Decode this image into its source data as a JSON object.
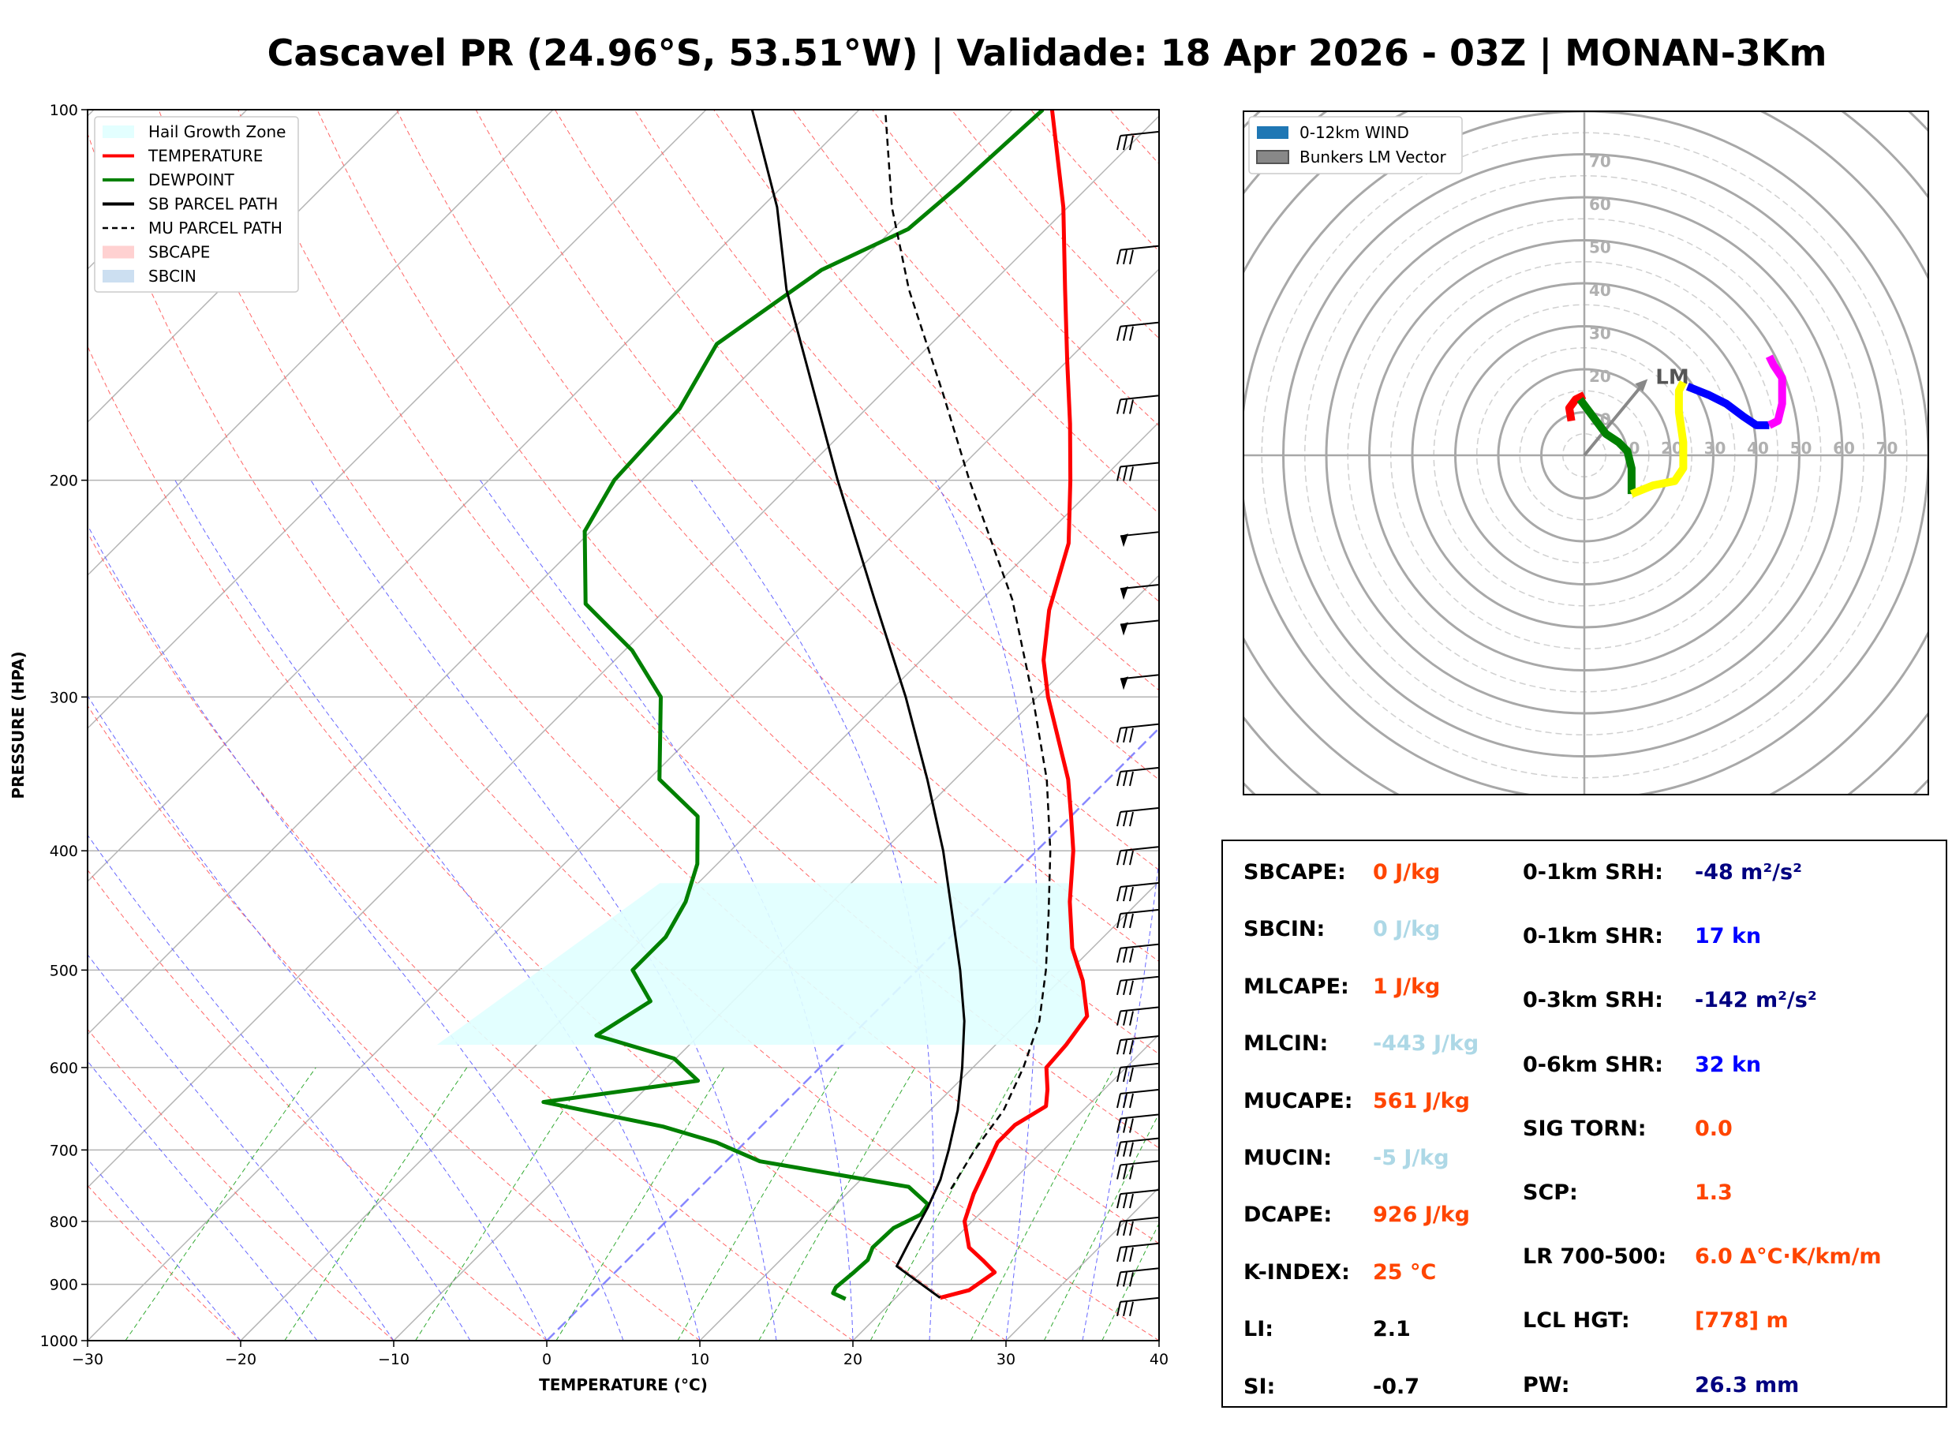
{
  "title": "Cascavel PR (24.96°S, 53.51°W) | Validade: 18 Apr 2026 - 03Z | MONAN-3Km",
  "colors": {
    "temperature": "#ff0000",
    "dewpoint": "#008000",
    "sb_parcel": "#000000",
    "hail_zone": "#e0ffff",
    "label_orange": "#ff4500",
    "label_lightblue": "#add8e6",
    "label_navy": "#000080",
    "label_blue": "#0000ff",
    "label_black": "#000000"
  },
  "chart_data": [
    {
      "type": "line",
      "subtype": "skew-t",
      "xlabel": "TEMPERATURE (°C)",
      "ylabel": "PRESSURE (HPA)",
      "xlim": [
        -30,
        40
      ],
      "ylim": [
        1000,
        100
      ],
      "x_ticks": [
        -30,
        -20,
        -10,
        0,
        10,
        20,
        30,
        40
      ],
      "x_tick_labels": [
        "−30",
        "−20",
        "−10",
        "0",
        "10",
        "20",
        "30",
        "40"
      ],
      "y_ticks": [
        100,
        200,
        300,
        400,
        500,
        600,
        700,
        800,
        900,
        1000
      ],
      "y_tick_labels": [
        "100",
        "200",
        "300",
        "400",
        "500",
        "600",
        "700",
        "800",
        "900",
        "1000"
      ],
      "legend": [
        {
          "label": "Hail Growth Zone",
          "style": "fill",
          "color": "#e0ffff"
        },
        {
          "label": "TEMPERATURE",
          "style": "solid",
          "color": "#ff0000"
        },
        {
          "label": "DEWPOINT",
          "style": "solid",
          "color": "#008000"
        },
        {
          "label": "SB PARCEL PATH",
          "style": "solid",
          "color": "#000000"
        },
        {
          "label": "MU PARCEL PATH",
          "style": "dashed",
          "color": "#000000"
        },
        {
          "label": "SBCAPE",
          "style": "fill",
          "color": "#ffcccc"
        },
        {
          "label": "SBCIN",
          "style": "fill",
          "color": "#c6dbef"
        }
      ],
      "series": [
        {
          "name": "TEMPERATURE",
          "points": [
            [
              923,
              22.9
            ],
            [
              910,
              24.3
            ],
            [
              880,
              24.8
            ],
            [
              860,
              23.2
            ],
            [
              840,
              21.5
            ],
            [
              800,
              19.5
            ],
            [
              760,
              18.3
            ],
            [
              720,
              17.3
            ],
            [
              690,
              16.5
            ],
            [
              668,
              16.5
            ],
            [
              645,
              17.3
            ],
            [
              625,
              16.3
            ],
            [
              600,
              14.8
            ],
            [
              575,
              14.6
            ],
            [
              545,
              14.1
            ],
            [
              510,
              11.5
            ],
            [
              480,
              8.7
            ],
            [
              440,
              5.5
            ],
            [
              400,
              2.4
            ],
            [
              375,
              0.0
            ],
            [
              350,
              -2.6
            ],
            [
              300,
              -9.3
            ],
            [
              280,
              -12.0
            ],
            [
              255,
              -14.9
            ],
            [
              225,
              -18.0
            ],
            [
              200,
              -22.0
            ],
            [
              180,
              -25.7
            ],
            [
              160,
              -30.0
            ],
            [
              140,
              -34.8
            ],
            [
              120,
              -40.3
            ],
            [
              100,
              -47.4
            ]
          ]
        },
        {
          "name": "DEWPOINT",
          "points": [
            [
              925,
              16.8
            ],
            [
              915,
              15.6
            ],
            [
              905,
              15.4
            ],
            [
              880,
              15.6
            ],
            [
              860,
              15.7
            ],
            [
              840,
              15.2
            ],
            [
              810,
              15.3
            ],
            [
              790,
              16.2
            ],
            [
              775,
              16.0
            ],
            [
              750,
              13.6
            ],
            [
              715,
              2.2
            ],
            [
              690,
              -1.9
            ],
            [
              670,
              -6.4
            ],
            [
              640,
              -15.8
            ],
            [
              615,
              -7.1
            ],
            [
              590,
              -10.1
            ],
            [
              565,
              -16.7
            ],
            [
              530,
              -15.4
            ],
            [
              500,
              -18.6
            ],
            [
              470,
              -18.6
            ],
            [
              440,
              -19.6
            ],
            [
              410,
              -21.3
            ],
            [
              375,
              -24.4
            ],
            [
              350,
              -29.3
            ],
            [
              300,
              -34.6
            ],
            [
              275,
              -39.5
            ],
            [
              252,
              -45.6
            ],
            [
              220,
              -50.4
            ],
            [
              200,
              -51.8
            ],
            [
              175,
              -52.2
            ],
            [
              155,
              -54.0
            ],
            [
              135,
              -52.0
            ],
            [
              125,
              -49.0
            ],
            [
              115,
              -48.5
            ],
            [
              100,
              -48.0
            ]
          ]
        },
        {
          "name": "SB PARCEL PATH",
          "points": [
            [
              923,
              22.9
            ],
            [
              870,
              18.0
            ],
            [
              830,
              17.2
            ],
            [
              780,
              16.2
            ],
            [
              740,
              15.2
            ],
            [
              700,
              13.8
            ],
            [
              650,
              11.8
            ],
            [
              600,
              9.3
            ],
            [
              550,
              6.4
            ],
            [
              500,
              2.8
            ],
            [
              450,
              -1.4
            ],
            [
              400,
              -6.1
            ],
            [
              350,
              -11.8
            ],
            [
              300,
              -18.6
            ],
            [
              250,
              -27.0
            ],
            [
              200,
              -37.2
            ],
            [
              170,
              -44.4
            ],
            [
              140,
              -53.0
            ],
            [
              120,
              -59.0
            ],
            [
              100,
              -67.0
            ]
          ]
        },
        {
          "name": "MU PARCEL PATH",
          "points": [
            [
              753,
              16.5
            ],
            [
              700,
              15.5
            ],
            [
              650,
              14.8
            ],
            [
              600,
              13.3
            ],
            [
              550,
              11.3
            ],
            [
              500,
              8.4
            ],
            [
              450,
              4.9
            ],
            [
              400,
              0.9
            ],
            [
              350,
              -4.0
            ],
            [
              300,
              -10.3
            ],
            [
              250,
              -18.0
            ],
            [
              200,
              -28.6
            ],
            [
              170,
              -36.0
            ],
            [
              140,
              -45.0
            ],
            [
              120,
              -51.5
            ],
            [
              100,
              -58.3
            ]
          ]
        }
      ],
      "hail_growth_zone": {
        "p_bottom": 575,
        "p_top": 425
      }
    },
    {
      "type": "scatter",
      "subtype": "hodograph",
      "title": "",
      "rings": [
        10,
        20,
        30,
        40,
        50,
        60,
        70
      ],
      "ring_labels": [
        "10",
        "20",
        "30",
        "40",
        "50",
        "60",
        "70"
      ],
      "axis_range": [
        -80,
        80
      ],
      "legend": [
        {
          "label": "0-12km WIND",
          "color": "#1f77b4"
        },
        {
          "label": "Bunkers LM Vector",
          "color": "#888888"
        }
      ],
      "bunkers_lm": {
        "u": 14,
        "v": 17,
        "label": "LM"
      },
      "segments": [
        {
          "color": "#ff0000",
          "points": [
            [
              -3,
              8
            ],
            [
              -3.5,
              11
            ],
            [
              -2,
              13
            ],
            [
              0,
              14
            ]
          ]
        },
        {
          "color": "#008000",
          "points": [
            [
              -1,
              13
            ],
            [
              2,
              9
            ],
            [
              5,
              5
            ],
            [
              8,
              3
            ],
            [
              10,
              1
            ],
            [
              11,
              -3
            ],
            [
              11,
              -7
            ],
            [
              11,
              -9
            ]
          ]
        },
        {
          "color": "#ffff00",
          "points": [
            [
              11,
              -9
            ],
            [
              16,
              -7
            ],
            [
              21,
              -6
            ],
            [
              23,
              -3
            ],
            [
              23,
              3
            ],
            [
              22,
              10
            ],
            [
              22,
              15
            ],
            [
              23,
              17
            ]
          ]
        },
        {
          "color": "#0000ff",
          "points": [
            [
              24,
              16
            ],
            [
              29,
              14
            ],
            [
              33,
              12
            ],
            [
              37,
              9
            ],
            [
              40,
              7
            ],
            [
              43,
              7
            ]
          ]
        },
        {
          "color": "#ff00ff",
          "points": [
            [
              43,
              7
            ],
            [
              45,
              8
            ],
            [
              46,
              12
            ],
            [
              46,
              18
            ],
            [
              44,
              21
            ],
            [
              43,
              23
            ]
          ]
        }
      ]
    }
  ],
  "indices": {
    "left": [
      {
        "label": "SBCAPE:",
        "value": "0 J/kg",
        "color": "#ff4500"
      },
      {
        "label": "SBCIN:",
        "value": "0 J/kg",
        "color": "#add8e6"
      },
      {
        "label": "MLCAPE:",
        "value": "1 J/kg",
        "color": "#ff4500"
      },
      {
        "label": "MLCIN:",
        "value": "-443 J/kg",
        "color": "#add8e6"
      },
      {
        "label": "MUCAPE:",
        "value": "561 J/kg",
        "color": "#ff4500"
      },
      {
        "label": "MUCIN:",
        "value": "-5 J/kg",
        "color": "#add8e6"
      },
      {
        "label": "DCAPE:",
        "value": "926 J/kg",
        "color": "#ff4500"
      },
      {
        "label": "K-INDEX:",
        "value": "25 °C",
        "color": "#ff4500"
      },
      {
        "label": "LI:",
        "value": "2.1",
        "color": "#000000"
      },
      {
        "label": "SI:",
        "value": "-0.7",
        "color": "#000000"
      }
    ],
    "right": [
      {
        "label": "0-1km SRH:",
        "value": "-48 m²/s²",
        "color": "#000080"
      },
      {
        "label": "0-1km SHR:",
        "value": "17 kn",
        "color": "#0000ff"
      },
      {
        "label": "0-3km SRH:",
        "value": "-142 m²/s²",
        "color": "#000080"
      },
      {
        "label": "0-6km SHR:",
        "value": "32 kn",
        "color": "#0000ff"
      },
      {
        "label": "SIG TORN:",
        "value": "0.0",
        "color": "#ff4500"
      },
      {
        "label": "SCP:",
        "value": "1.3",
        "color": "#ff4500"
      },
      {
        "label": "LR 700-500:",
        "value": "6.0 Δ°C·K/km/m",
        "color": "#ff4500"
      },
      {
        "label": "LCL HGT:",
        "value": "[778] m",
        "color": "#ff4500"
      },
      {
        "label": "PW:",
        "value": "26.3 mm",
        "color": "#000080"
      }
    ]
  }
}
